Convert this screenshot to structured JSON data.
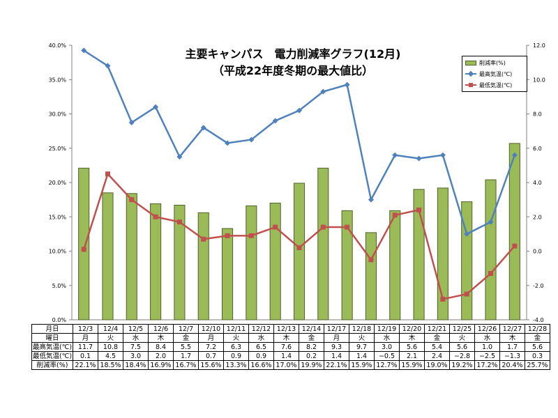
{
  "title": "主要キャンパス　電力削減率グラフ(12月)",
  "subtitle": "（平成22年度冬期の最大値比）",
  "legend": {
    "bar": "削減率(%)",
    "high": "最高気温(℃)",
    "low": "最低気温(℃)"
  },
  "colors": {
    "bar_fill": "#9bbb59",
    "bar_edge": "#4f6228",
    "high_line": "#4f81bd",
    "low_line": "#c0504d"
  },
  "left_axis_ticks": [
    "0.0%",
    "5.0%",
    "10.0%",
    "15.0%",
    "20.0%",
    "25.0%",
    "30.0%",
    "35.0%",
    "40.0%"
  ],
  "right_axis_ticks": [
    "-4.0",
    "-2.0",
    "0.0",
    "2.0",
    "4.0",
    "6.0",
    "8.0",
    "10.0",
    "12.0"
  ],
  "table": {
    "row_headers": [
      "月日",
      "曜日",
      "最高気温(℃)",
      "最低気温(℃)",
      "削減率(%)"
    ],
    "dates": [
      "12/3",
      "12/4",
      "12/5",
      "12/6",
      "12/7",
      "12/10",
      "12/11",
      "12/12",
      "12/13",
      "12/14",
      "12/17",
      "12/18",
      "12/19",
      "12/20",
      "12/21",
      "12/25",
      "12/26",
      "12/27",
      "12/28"
    ],
    "weekdays": [
      "月",
      "火",
      "水",
      "木",
      "金",
      "月",
      "火",
      "水",
      "木",
      "金",
      "月",
      "火",
      "水",
      "木",
      "金",
      "火",
      "水",
      "木",
      "金"
    ],
    "high": [
      "11.7",
      "10.8",
      "7.5",
      "8.4",
      "5.5",
      "7.2",
      "6.3",
      "6.5",
      "7.6",
      "8.2",
      "9.3",
      "9.7",
      "3.0",
      "5.6",
      "5.4",
      "5.6",
      "1.0",
      "1.7",
      "5.6"
    ],
    "low": [
      "0.1",
      "4.5",
      "3.0",
      "2.0",
      "1.7",
      "0.7",
      "0.9",
      "0.9",
      "1.4",
      "0.2",
      "1.4",
      "1.4",
      "−0.5",
      "2.1",
      "2.4",
      "−2.8",
      "−2.5",
      "−1.3",
      "0.3"
    ],
    "rate": [
      "22.1%",
      "18.5%",
      "18.4%",
      "16.9%",
      "16.7%",
      "15.6%",
      "13.3%",
      "16.6%",
      "17.0%",
      "19.9%",
      "22.1%",
      "15.9%",
      "12.7%",
      "15.9%",
      "19.0%",
      "19.2%",
      "17.2%",
      "20.4%",
      "25.7%"
    ]
  },
  "chart_data": {
    "type": "bar",
    "title": "主要キャンパス　電力削減率グラフ(12月)",
    "subtitle": "（平成22年度冬期の最大値比）",
    "categories": [
      "12/3",
      "12/4",
      "12/5",
      "12/6",
      "12/7",
      "12/10",
      "12/11",
      "12/12",
      "12/13",
      "12/14",
      "12/17",
      "12/18",
      "12/19",
      "12/20",
      "12/21",
      "12/25",
      "12/26",
      "12/27",
      "12/28"
    ],
    "series": [
      {
        "name": "削減率(%)",
        "type": "bar",
        "axis": "left",
        "values": [
          22.1,
          18.5,
          18.4,
          16.9,
          16.7,
          15.6,
          13.3,
          16.6,
          17.0,
          19.9,
          22.1,
          15.9,
          12.7,
          15.9,
          19.0,
          19.2,
          17.2,
          20.4,
          25.7
        ]
      },
      {
        "name": "最高気温(℃)",
        "type": "line",
        "axis": "right",
        "values": [
          11.7,
          10.8,
          7.5,
          8.4,
          5.5,
          7.2,
          6.3,
          6.5,
          7.6,
          8.2,
          9.3,
          9.7,
          3.0,
          5.6,
          5.4,
          5.6,
          1.0,
          1.7,
          5.6
        ]
      },
      {
        "name": "最低気温(℃)",
        "type": "line",
        "axis": "right",
        "values": [
          0.1,
          4.5,
          3.0,
          2.0,
          1.7,
          0.7,
          0.9,
          0.9,
          1.4,
          0.2,
          1.4,
          1.4,
          -0.5,
          2.1,
          2.4,
          -2.8,
          -2.5,
          -1.3,
          0.3
        ]
      }
    ],
    "ylim_left": [
      0,
      40
    ],
    "ylim_right": [
      -4,
      12
    ],
    "grid": false,
    "legend": "top-right"
  }
}
